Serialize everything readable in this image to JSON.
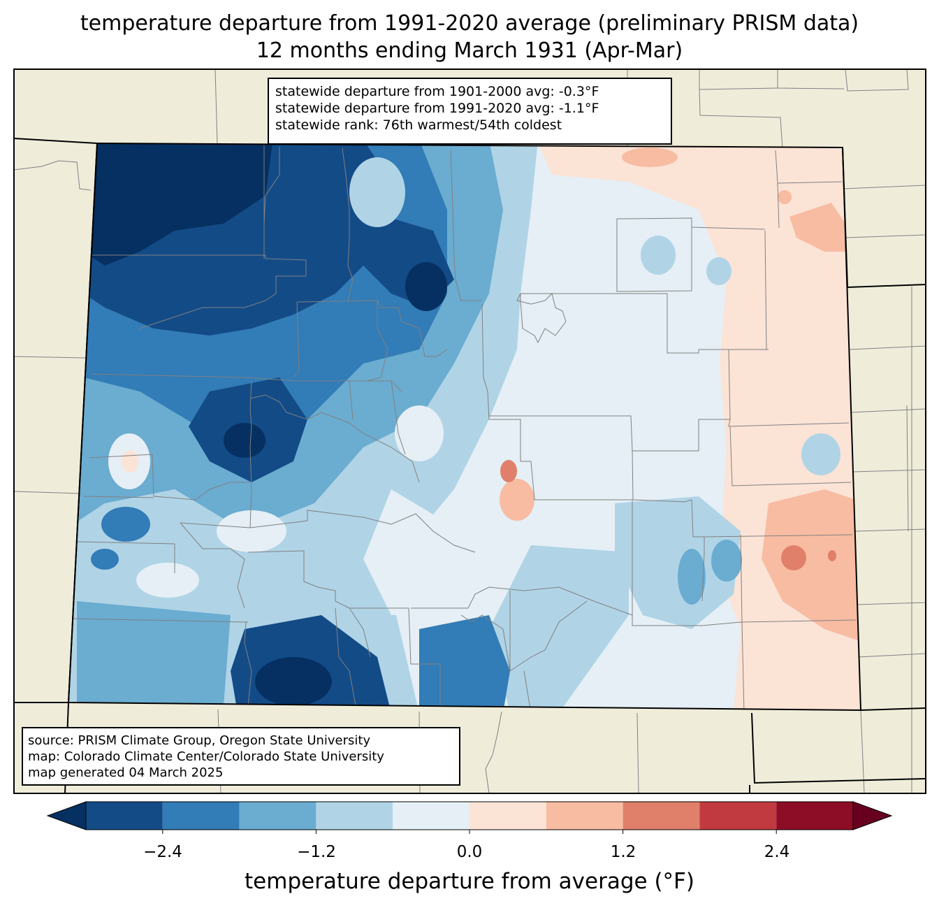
{
  "title": {
    "line1": "temperature departure from 1991-2020 average (preliminary PRISM data)",
    "line2": "12 months ending March 1931 (Apr-Mar)"
  },
  "stats": {
    "line1": "statewide departure from 1901-2000 avg: -0.3°F",
    "line2": "statewide departure from 1991-2020 avg: -1.1°F",
    "line3": "statewide rank: 76th warmest/54th coldest"
  },
  "source": {
    "line1": "source: PRISM Climate Group, Oregon State University",
    "line2": "map: Colorado Climate Center/Colorado State University",
    "line3": "map generated 04 March 2025"
  },
  "colorbar": {
    "label": "temperature departure from average (°F)",
    "ticks": [
      "−2.4",
      "−1.2",
      "0.0",
      "1.2",
      "2.4"
    ],
    "bounds": [
      -3.0,
      -2.4,
      -1.8,
      -1.2,
      -0.6,
      0.0,
      0.6,
      1.2,
      1.8,
      2.4,
      3.0
    ],
    "under_color": "#053061",
    "over_color": "#67001f",
    "colors": [
      "#134b87",
      "#327cb7",
      "#6bacd1",
      "#b0d4e6",
      "#e5eff5",
      "#fbe3d6",
      "#f8bca2",
      "#e0806a",
      "#c13a3f",
      "#8c0d25"
    ]
  },
  "map_colors": {
    "background": "#efedda",
    "state_border": "#000000",
    "county_line": "#808080"
  }
}
